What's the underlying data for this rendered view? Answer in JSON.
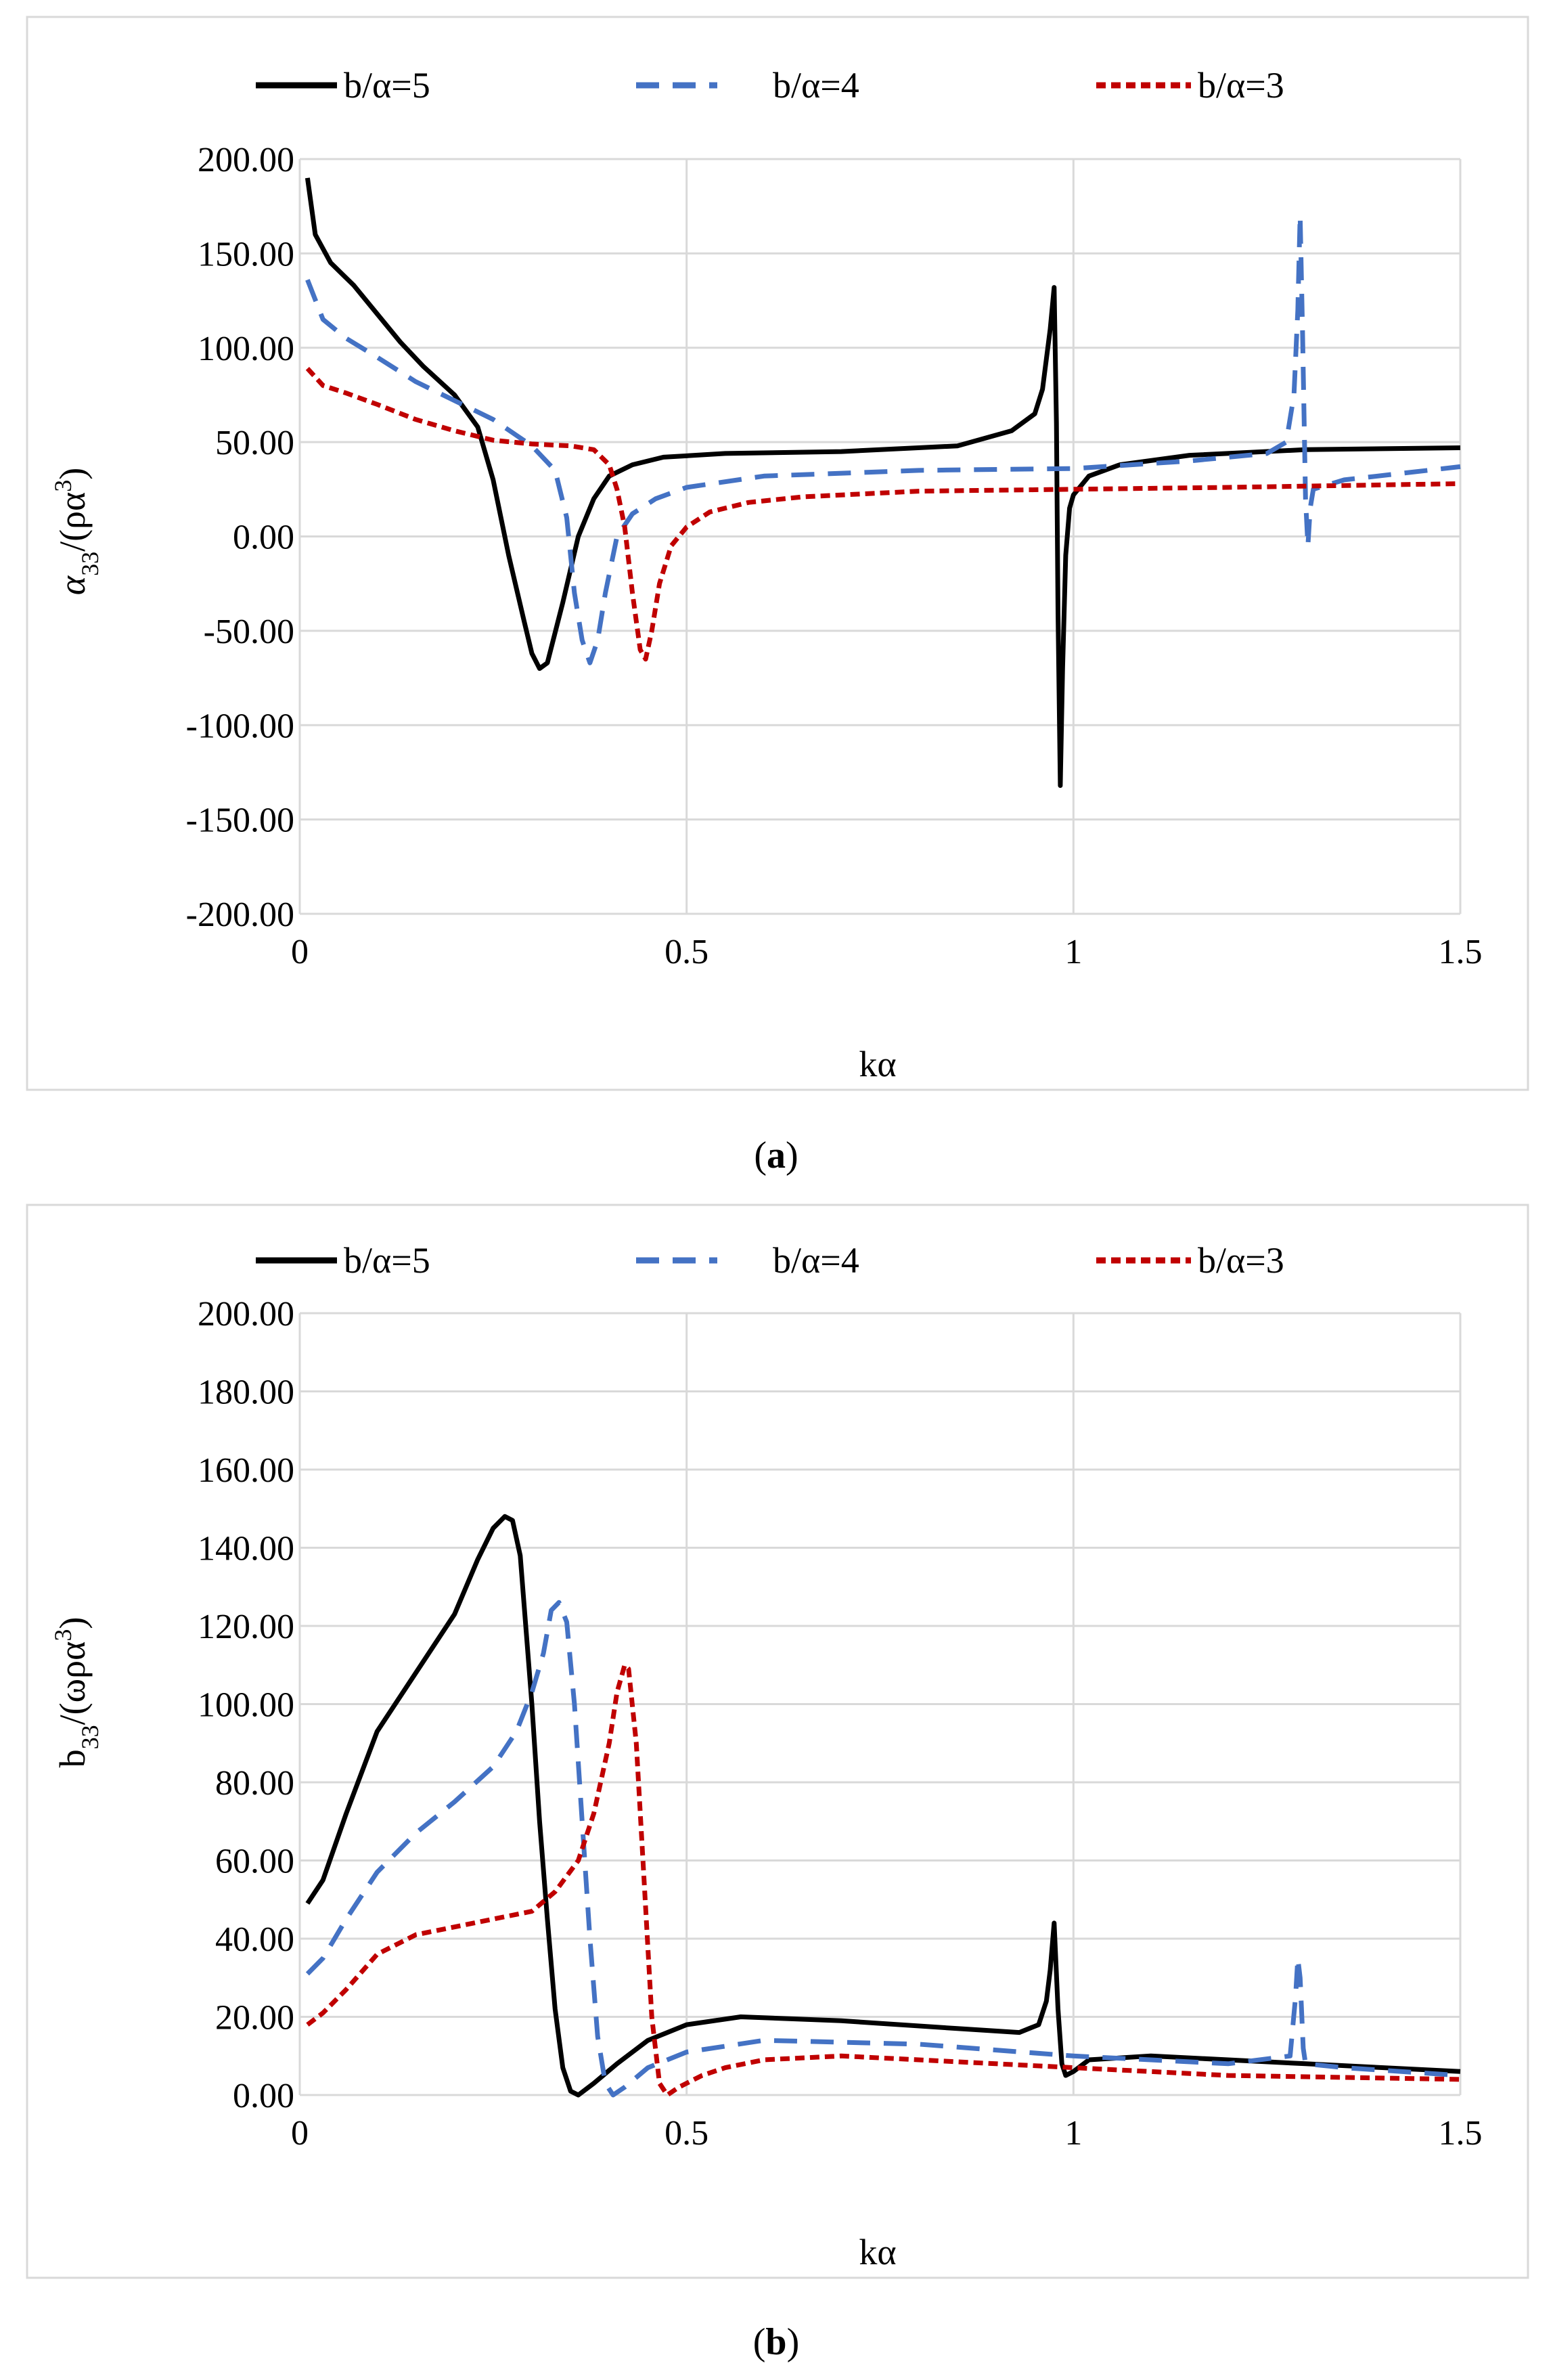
{
  "chart_data": [
    {
      "type": "line",
      "panel": "a",
      "caption_prefix": "(",
      "caption_letter": "a",
      "caption_suffix": ")",
      "xlabel": "kα",
      "ylabel": "α33/(ρα3)",
      "ylabel_parts": {
        "sym": "α",
        "sub": "33",
        "mid": "/(ρα",
        "sup": "3",
        "end": ")"
      },
      "xlim": [
        0,
        1.5
      ],
      "ylim": [
        -200,
        200
      ],
      "xticks": [
        0,
        0.5,
        1,
        1.5
      ],
      "xtick_labels": [
        "0",
        "0.5",
        "1",
        "1.5"
      ],
      "yticks": [
        200,
        150,
        100,
        50,
        0,
        -50,
        -100,
        -150,
        -200
      ],
      "ytick_labels": [
        "200.00",
        "150.00",
        "100.00",
        "50.00",
        "0.00",
        "-50.00",
        "-100.00",
        "-150.00",
        "-200.00"
      ],
      "legend": [
        "b/α=5",
        "b/α=4",
        "b/α=3"
      ],
      "series": [
        {
          "name": "b/α=5",
          "color": "#000000",
          "dash": "solid",
          "x": [
            0.01,
            0.02,
            0.04,
            0.07,
            0.1,
            0.13,
            0.16,
            0.2,
            0.23,
            0.25,
            0.27,
            0.29,
            0.3,
            0.31,
            0.32,
            0.34,
            0.36,
            0.38,
            0.4,
            0.43,
            0.47,
            0.55,
            0.7,
            0.85,
            0.92,
            0.95,
            0.96,
            0.97,
            0.975,
            0.978,
            0.98,
            0.983,
            0.986,
            0.99,
            0.995,
            1.0,
            1.02,
            1.06,
            1.15,
            1.3,
            1.5
          ],
          "y": [
            190,
            160,
            145,
            133,
            118,
            103,
            90,
            75,
            58,
            30,
            -10,
            -45,
            -62,
            -70,
            -67,
            -35,
            0,
            20,
            32,
            38,
            42,
            44,
            45,
            48,
            56,
            65,
            78,
            110,
            132,
            60,
            -40,
            -132,
            -70,
            -10,
            15,
            22,
            32,
            38,
            43,
            46,
            47
          ]
        },
        {
          "name": "b/α=4",
          "color": "#4472C4",
          "dash": "dashed",
          "x": [
            0.01,
            0.03,
            0.06,
            0.1,
            0.15,
            0.2,
            0.25,
            0.3,
            0.33,
            0.345,
            0.355,
            0.365,
            0.375,
            0.385,
            0.395,
            0.41,
            0.43,
            0.46,
            0.5,
            0.6,
            0.8,
            1.0,
            1.15,
            1.25,
            1.275,
            1.285,
            1.29,
            1.293,
            1.296,
            1.3,
            1.303,
            1.306,
            1.31,
            1.35,
            1.5
          ],
          "y": [
            136,
            115,
            105,
            95,
            82,
            72,
            62,
            48,
            35,
            10,
            -30,
            -55,
            -67,
            -55,
            -30,
            0,
            12,
            20,
            26,
            32,
            35,
            36,
            40,
            44,
            50,
            75,
            120,
            170,
            110,
            20,
            -5,
            15,
            25,
            30,
            37
          ]
        },
        {
          "name": "b/α=3",
          "color": "#C00000",
          "dash": "dotted",
          "x": [
            0.01,
            0.03,
            0.06,
            0.1,
            0.15,
            0.2,
            0.25,
            0.3,
            0.35,
            0.38,
            0.4,
            0.41,
            0.42,
            0.43,
            0.44,
            0.447,
            0.455,
            0.465,
            0.48,
            0.5,
            0.53,
            0.58,
            0.65,
            0.8,
            1.0,
            1.2,
            1.5
          ],
          "y": [
            89,
            80,
            76,
            70,
            62,
            56,
            51,
            49,
            48,
            46,
            38,
            25,
            5,
            -30,
            -60,
            -65,
            -50,
            -25,
            -5,
            5,
            13,
            18,
            21,
            24,
            25,
            26,
            28
          ]
        }
      ]
    },
    {
      "type": "line",
      "panel": "b",
      "caption_prefix": "(",
      "caption_letter": "b",
      "caption_suffix": ")",
      "xlabel": "kα",
      "ylabel": "b33/(ωρα3)",
      "ylabel_parts": {
        "sym": "b",
        "sub": "33",
        "mid": "/(ωρα",
        "sup": "3",
        "end": ")"
      },
      "xlim": [
        0,
        1.5
      ],
      "ylim": [
        0,
        200
      ],
      "xticks": [
        0,
        0.5,
        1,
        1.5
      ],
      "xtick_labels": [
        "0",
        "0.5",
        "1",
        "1.5"
      ],
      "yticks": [
        200,
        180,
        160,
        140,
        120,
        100,
        80,
        60,
        40,
        20,
        0
      ],
      "ytick_labels": [
        "200.00",
        "180.00",
        "160.00",
        "140.00",
        "120.00",
        "100.00",
        "80.00",
        "60.00",
        "40.00",
        "20.00",
        "0.00"
      ],
      "legend": [
        "b/α=5",
        "b/α=4",
        "b/α=3"
      ],
      "series": [
        {
          "name": "b/α=5",
          "color": "#000000",
          "dash": "solid",
          "x": [
            0.01,
            0.03,
            0.06,
            0.1,
            0.15,
            0.2,
            0.23,
            0.25,
            0.265,
            0.275,
            0.285,
            0.3,
            0.31,
            0.32,
            0.33,
            0.34,
            0.35,
            0.36,
            0.38,
            0.41,
            0.45,
            0.5,
            0.57,
            0.7,
            0.85,
            0.93,
            0.955,
            0.965,
            0.97,
            0.975,
            0.98,
            0.985,
            0.99,
            1.0,
            1.02,
            1.1,
            1.3,
            1.5
          ],
          "y": [
            49,
            55,
            72,
            93,
            108,
            123,
            137,
            145,
            148,
            147,
            138,
            100,
            70,
            45,
            22,
            7,
            1,
            0,
            3,
            8,
            14,
            18,
            20,
            19,
            17,
            16,
            18,
            24,
            32,
            44,
            22,
            8,
            5,
            6,
            9,
            10,
            8,
            6
          ]
        },
        {
          "name": "b/α=4",
          "color": "#4472C4",
          "dash": "dashed",
          "x": [
            0.01,
            0.03,
            0.06,
            0.1,
            0.15,
            0.2,
            0.25,
            0.28,
            0.3,
            0.315,
            0.325,
            0.335,
            0.345,
            0.355,
            0.365,
            0.375,
            0.385,
            0.395,
            0.405,
            0.42,
            0.45,
            0.5,
            0.6,
            0.8,
            1.0,
            1.2,
            1.28,
            1.287,
            1.29,
            1.293,
            1.297,
            1.3,
            1.35,
            1.5
          ],
          "y": [
            31,
            35,
            45,
            57,
            67,
            75,
            84,
            93,
            103,
            113,
            124,
            126,
            121,
            100,
            70,
            40,
            15,
            3,
            0,
            2,
            7,
            11,
            14,
            13,
            10,
            8,
            10,
            25,
            35,
            30,
            12,
            8,
            7,
            5
          ]
        },
        {
          "name": "b/α=3",
          "color": "#C00000",
          "dash": "dotted",
          "x": [
            0.01,
            0.03,
            0.06,
            0.1,
            0.15,
            0.2,
            0.25,
            0.3,
            0.33,
            0.36,
            0.38,
            0.4,
            0.41,
            0.42,
            0.425,
            0.435,
            0.445,
            0.455,
            0.465,
            0.475,
            0.49,
            0.52,
            0.55,
            0.6,
            0.7,
            0.8,
            1.0,
            1.2,
            1.5
          ],
          "y": [
            18,
            21,
            27,
            36,
            41,
            43,
            45,
            47,
            52,
            60,
            72,
            90,
            103,
            110,
            109,
            90,
            55,
            20,
            3,
            0,
            2,
            5,
            7,
            9,
            10,
            9,
            7,
            5,
            4
          ]
        }
      ]
    }
  ]
}
